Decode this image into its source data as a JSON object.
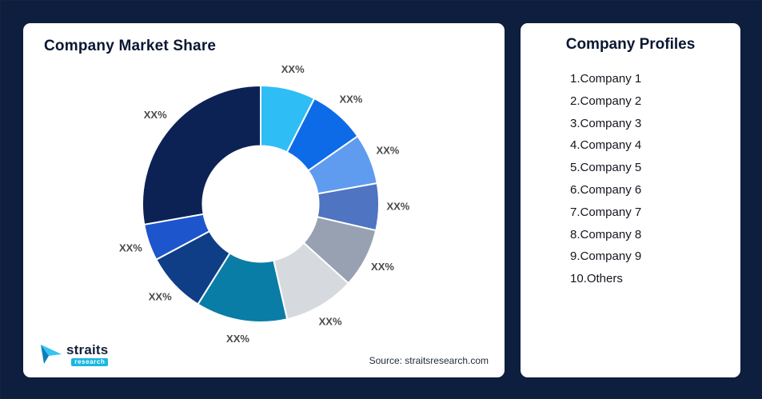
{
  "theme": {
    "page_background": "#0d1e3e",
    "card_background": "#ffffff",
    "title_color": "#0a1733",
    "slice_label_color": "#4a4a4a",
    "logo_accent": "#19b8e0",
    "logo_dark": "#14213d"
  },
  "left_card": {
    "title": "Company Market Share",
    "source": "Source: straitsresearch.com",
    "logo_name": "straits",
    "logo_sub": "research"
  },
  "right_card": {
    "title": "Company Profiles",
    "items": [
      "1.Company 1",
      "2.Company 2",
      "3.Company 3",
      "4.Company 4",
      "5.Company 5",
      "6.Company 6",
      "7.Company 7",
      "8.Company 8",
      "9.Company 9",
      "10.Others"
    ]
  },
  "chart_data": {
    "type": "pie",
    "subtype": "donut",
    "title": "Company Market Share",
    "labels": [
      "Company 1",
      "Company 2",
      "Company 3",
      "Company 4",
      "Company 5",
      "Company 6",
      "Company 7",
      "Company 8",
      "Company 9",
      "Others"
    ],
    "values": [
      7.5,
      7.8,
      6.9,
      6.4,
      8.1,
      9.7,
      12.5,
      8.3,
      5.0,
      27.8
    ],
    "value_labels": [
      "XX%",
      "XX%",
      "XX%",
      "XX%",
      "XX%",
      "XX%",
      "XX%",
      "XX%",
      "XX%",
      "XX%"
    ],
    "colors": [
      "#2fbdf6",
      "#0d6be8",
      "#5f9cf0",
      "#4e74c2",
      "#97a1b1",
      "#d6dade",
      "#0a7da6",
      "#0f3e86",
      "#1d55cc",
      "#0d2254"
    ],
    "start_angle_deg": 0,
    "direction": "clockwise",
    "inner_radius_ratio": 0.49,
    "legend_position": "none"
  }
}
